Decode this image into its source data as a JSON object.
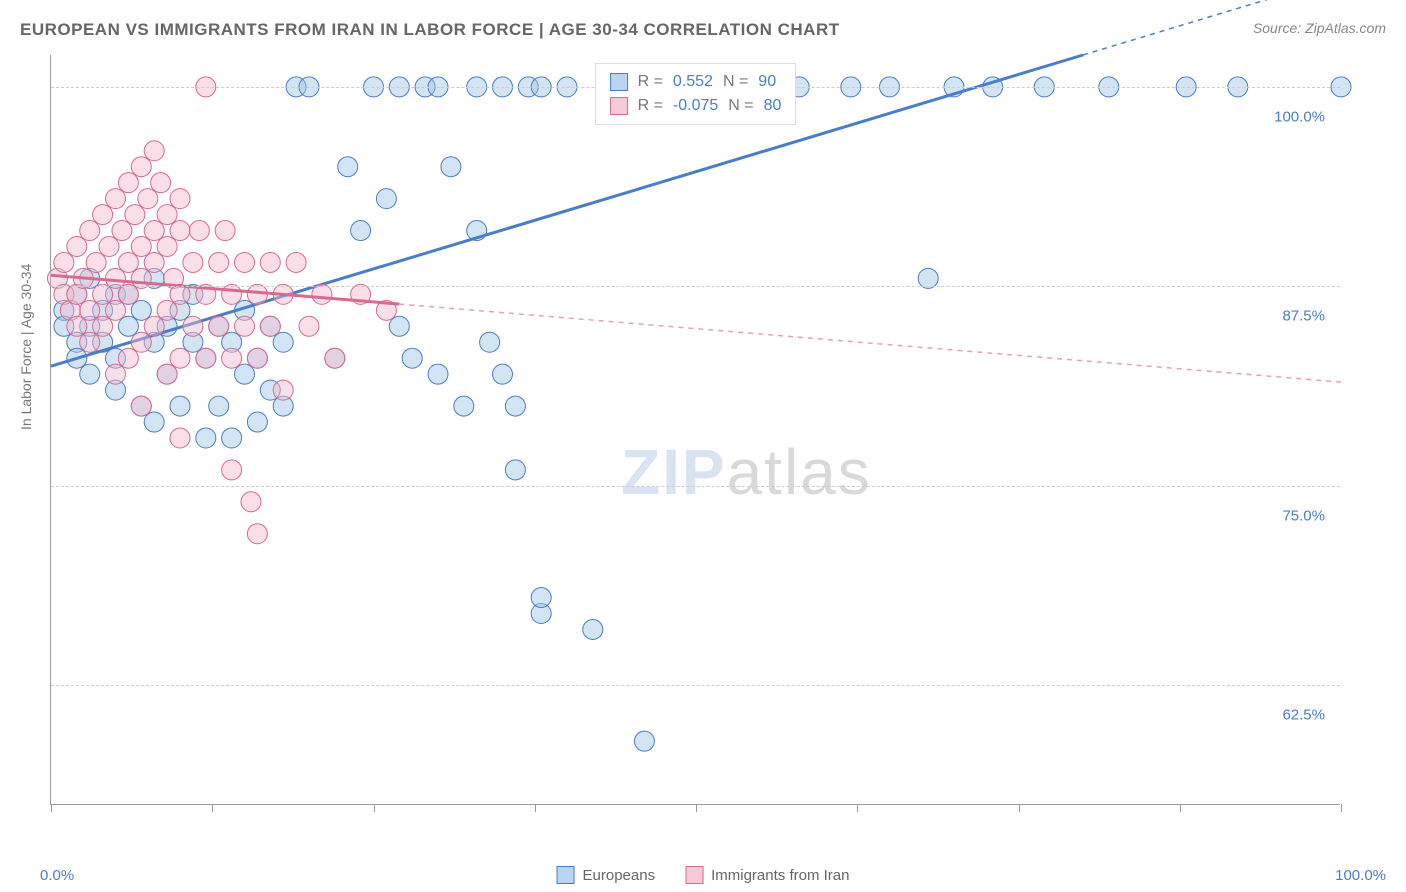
{
  "title": "EUROPEAN VS IMMIGRANTS FROM IRAN IN LABOR FORCE | AGE 30-34 CORRELATION CHART",
  "source": "Source: ZipAtlas.com",
  "ylabel": "In Labor Force | Age 30-34",
  "watermark_a": "ZIP",
  "watermark_b": "atlas",
  "chart": {
    "type": "scatter",
    "xlim": [
      0,
      100
    ],
    "ylim": [
      55,
      102
    ],
    "yticks": [
      62.5,
      75.0,
      87.5,
      100.0
    ],
    "ytick_labels": [
      "62.5%",
      "75.0%",
      "87.5%",
      "100.0%"
    ],
    "xticks": [
      0,
      12.5,
      25,
      37.5,
      50,
      62.5,
      75,
      87.5,
      100
    ],
    "xtick_labels": {
      "0": "0.0%",
      "100": "100.0%"
    },
    "background": "#ffffff",
    "grid_color": "#cccccc",
    "axis_color": "#999999",
    "marker_radius": 10,
    "marker_opacity": 0.45,
    "series": [
      {
        "name": "Europeans",
        "color_fill": "#9ec5e8",
        "color_stroke": "#4a7dc9",
        "R": "0.552",
        "N": "90",
        "trend": {
          "x1": 0,
          "y1": 82.5,
          "x2": 80,
          "y2": 102,
          "solid_until_x": 80,
          "dash_color": "#4a7dc9"
        },
        "points": [
          [
            1,
            86
          ],
          [
            1,
            85
          ],
          [
            2,
            87
          ],
          [
            2,
            84
          ],
          [
            2,
            83
          ],
          [
            3,
            88
          ],
          [
            3,
            85
          ],
          [
            3,
            82
          ],
          [
            4,
            86
          ],
          [
            4,
            84
          ],
          [
            5,
            87
          ],
          [
            5,
            83
          ],
          [
            5,
            81
          ],
          [
            6,
            85
          ],
          [
            6,
            87
          ],
          [
            7,
            86
          ],
          [
            7,
            80
          ],
          [
            8,
            88
          ],
          [
            8,
            84
          ],
          [
            8,
            79
          ],
          [
            9,
            85
          ],
          [
            9,
            82
          ],
          [
            10,
            86
          ],
          [
            10,
            80
          ],
          [
            11,
            87
          ],
          [
            11,
            84
          ],
          [
            12,
            83
          ],
          [
            12,
            78
          ],
          [
            13,
            85
          ],
          [
            13,
            80
          ],
          [
            14,
            84
          ],
          [
            14,
            78
          ],
          [
            15,
            86
          ],
          [
            15,
            82
          ],
          [
            16,
            83
          ],
          [
            16,
            79
          ],
          [
            17,
            85
          ],
          [
            17,
            81
          ],
          [
            18,
            84
          ],
          [
            18,
            80
          ],
          [
            19,
            100
          ],
          [
            20,
            100
          ],
          [
            22,
            83
          ],
          [
            23,
            95
          ],
          [
            24,
            91
          ],
          [
            25,
            100
          ],
          [
            26,
            93
          ],
          [
            27,
            85
          ],
          [
            27,
            100
          ],
          [
            28,
            83
          ],
          [
            29,
            100
          ],
          [
            30,
            82
          ],
          [
            30,
            100
          ],
          [
            31,
            95
          ],
          [
            32,
            80
          ],
          [
            33,
            91
          ],
          [
            33,
            100
          ],
          [
            34,
            84
          ],
          [
            35,
            82
          ],
          [
            35,
            100
          ],
          [
            36,
            76
          ],
          [
            36,
            80
          ],
          [
            37,
            100
          ],
          [
            38,
            67
          ],
          [
            38,
            68
          ],
          [
            38,
            100
          ],
          [
            40,
            100
          ],
          [
            42,
            66
          ],
          [
            43,
            100
          ],
          [
            46,
            59
          ],
          [
            46,
            100
          ],
          [
            47,
            100
          ],
          [
            49,
            100
          ],
          [
            50,
            100
          ],
          [
            51,
            100
          ],
          [
            53,
            100
          ],
          [
            56,
            100
          ],
          [
            58,
            100
          ],
          [
            62,
            100
          ],
          [
            65,
            100
          ],
          [
            68,
            88
          ],
          [
            70,
            100
          ],
          [
            73,
            100
          ],
          [
            77,
            100
          ],
          [
            82,
            100
          ],
          [
            88,
            100
          ],
          [
            92,
            100
          ],
          [
            100,
            100
          ]
        ]
      },
      {
        "name": "Immigrants from Iran",
        "color_fill": "#f4b8ce",
        "color_stroke": "#d86a8f",
        "R": "-0.075",
        "N": "80",
        "trend": {
          "x1": 0,
          "y1": 88.2,
          "x2": 100,
          "y2": 81.5,
          "solid_until_x": 27,
          "dash_color": "#e8a0b8"
        },
        "points": [
          [
            0.5,
            88
          ],
          [
            1,
            87
          ],
          [
            1,
            89
          ],
          [
            1.5,
            86
          ],
          [
            2,
            90
          ],
          [
            2,
            87
          ],
          [
            2,
            85
          ],
          [
            2.5,
            88
          ],
          [
            3,
            91
          ],
          [
            3,
            86
          ],
          [
            3,
            84
          ],
          [
            3.5,
            89
          ],
          [
            4,
            92
          ],
          [
            4,
            87
          ],
          [
            4,
            85
          ],
          [
            4.5,
            90
          ],
          [
            5,
            93
          ],
          [
            5,
            88
          ],
          [
            5,
            86
          ],
          [
            5,
            82
          ],
          [
            5.5,
            91
          ],
          [
            6,
            94
          ],
          [
            6,
            89
          ],
          [
            6,
            87
          ],
          [
            6,
            83
          ],
          [
            6.5,
            92
          ],
          [
            7,
            95
          ],
          [
            7,
            90
          ],
          [
            7,
            88
          ],
          [
            7,
            84
          ],
          [
            7,
            80
          ],
          [
            7.5,
            93
          ],
          [
            8,
            96
          ],
          [
            8,
            91
          ],
          [
            8,
            89
          ],
          [
            8,
            85
          ],
          [
            8.5,
            94
          ],
          [
            9,
            92
          ],
          [
            9,
            90
          ],
          [
            9,
            86
          ],
          [
            9,
            82
          ],
          [
            9.5,
            88
          ],
          [
            10,
            93
          ],
          [
            10,
            91
          ],
          [
            10,
            87
          ],
          [
            10,
            83
          ],
          [
            10,
            78
          ],
          [
            11,
            89
          ],
          [
            11,
            85
          ],
          [
            11.5,
            91
          ],
          [
            12,
            100
          ],
          [
            12,
            87
          ],
          [
            12,
            83
          ],
          [
            13,
            89
          ],
          [
            13,
            85
          ],
          [
            13.5,
            91
          ],
          [
            14,
            87
          ],
          [
            14,
            83
          ],
          [
            14,
            76
          ],
          [
            15,
            89
          ],
          [
            15,
            85
          ],
          [
            15.5,
            74
          ],
          [
            16,
            87
          ],
          [
            16,
            83
          ],
          [
            16,
            72
          ],
          [
            17,
            89
          ],
          [
            17,
            85
          ],
          [
            18,
            87
          ],
          [
            18,
            81
          ],
          [
            19,
            89
          ],
          [
            20,
            85
          ],
          [
            21,
            87
          ],
          [
            22,
            83
          ],
          [
            24,
            87
          ],
          [
            26,
            86
          ]
        ]
      }
    ]
  },
  "legend_bottom": [
    {
      "swatch": "blue",
      "label": "Europeans"
    },
    {
      "swatch": "pink",
      "label": "Immigrants from Iran"
    }
  ],
  "legend_top_labels": {
    "R": "R =",
    "N": "N ="
  }
}
